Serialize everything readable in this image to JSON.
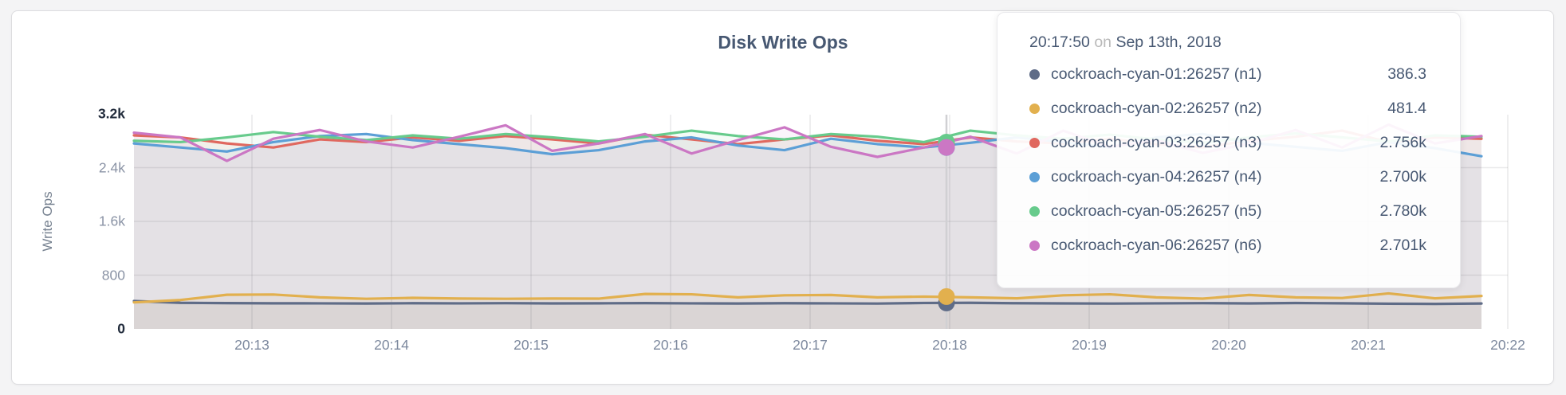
{
  "page": {
    "background": "#f4f4f5",
    "card_background": "#ffffff",
    "card_border": "#dcdcdf"
  },
  "chart_data": {
    "type": "line",
    "title": "Disk Write Ops",
    "xlabel": "",
    "ylabel": "Write Ops",
    "ylim": [
      0,
      3200
    ],
    "grid": true,
    "legend_position": "tooltip",
    "x_tick_labels": [
      "20:13",
      "20:14",
      "20:15",
      "20:16",
      "20:17",
      "20:18",
      "20:19",
      "20:20",
      "20:21",
      "20:22"
    ],
    "y_ticks": [
      {
        "label": "3.2k",
        "value": 3200,
        "strong": true
      },
      {
        "label": "2.4k",
        "value": 2400,
        "strong": false
      },
      {
        "label": "1.6k",
        "value": 1600,
        "strong": false
      },
      {
        "label": "800",
        "value": 800,
        "strong": false
      },
      {
        "label": "0",
        "value": 0,
        "strong": true
      }
    ],
    "x_start": "20:12:10",
    "x_end": "20:21:50",
    "x_step_seconds": 20,
    "hover_time": "20:17:50",
    "series": [
      {
        "name": "cockroach-cyan-01:26257 (n1)",
        "color": "#5f6c87",
        "hover_value": 386.3,
        "values": [
          415,
          388,
          384,
          381,
          380,
          378,
          382,
          380,
          383,
          379,
          381,
          384,
          380,
          378,
          382,
          380,
          377,
          386,
          388,
          382,
          379,
          377,
          380,
          383,
          379,
          385,
          381,
          375,
          372,
          378
        ]
      },
      {
        "name": "cockroach-cyan-02:26257 (n2)",
        "color": "#e2b04e",
        "hover_value": 481.4,
        "values": [
          395,
          430,
          508,
          512,
          470,
          448,
          462,
          452,
          448,
          452,
          450,
          520,
          515,
          470,
          500,
          505,
          470,
          481,
          470,
          455,
          500,
          515,
          470,
          450,
          505,
          470,
          460,
          528,
          455,
          490
        ]
      },
      {
        "name": "cockroach-cyan-03:26257 (n3)",
        "color": "#e0685f",
        "hover_value": 2756,
        "values": [
          2880,
          2850,
          2760,
          2700,
          2820,
          2780,
          2850,
          2800,
          2870,
          2820,
          2760,
          2890,
          2820,
          2750,
          2820,
          2880,
          2800,
          2750,
          2850,
          2790,
          2760,
          2830,
          2750,
          2700,
          2800,
          2860,
          2950,
          2780,
          2850,
          2830
        ]
      },
      {
        "name": "cockroach-cyan-04:26257 (n4)",
        "color": "#5c9fd6",
        "hover_value": 2700,
        "values": [
          2760,
          2700,
          2640,
          2780,
          2870,
          2900,
          2810,
          2750,
          2690,
          2600,
          2660,
          2790,
          2850,
          2730,
          2660,
          2830,
          2750,
          2700,
          2770,
          2850,
          2780,
          2700,
          2850,
          2900,
          2770,
          2710,
          2650,
          2780,
          2690,
          2570
        ]
      },
      {
        "name": "cockroach-cyan-05:26257 (n5)",
        "color": "#67cb8c",
        "hover_value": 2780,
        "values": [
          2800,
          2780,
          2850,
          2930,
          2860,
          2810,
          2880,
          2830,
          2900,
          2850,
          2790,
          2860,
          2950,
          2870,
          2820,
          2900,
          2860,
          2780,
          2950,
          2880,
          2830,
          2890,
          2820,
          2770,
          2850,
          2910,
          2850,
          2790,
          2880,
          2860
        ]
      },
      {
        "name": "cockroach-cyan-06:26257 (n6)",
        "color": "#cb77c4",
        "hover_value": 2701,
        "values": [
          2920,
          2850,
          2500,
          2830,
          2960,
          2790,
          2700,
          2860,
          3030,
          2650,
          2760,
          2900,
          2610,
          2810,
          3000,
          2710,
          2560,
          2700,
          2860,
          2610,
          2950,
          2710,
          2810,
          2620,
          2760,
          2960,
          2700,
          3040,
          2760,
          2870
        ]
      }
    ]
  },
  "tooltip": {
    "time": "20:17:50",
    "on_word": "on",
    "date": "Sep 13th, 2018",
    "rows": [
      {
        "label": "cockroach-cyan-01:26257 (n1)",
        "value": "386.3",
        "color": "#5f6c87"
      },
      {
        "label": "cockroach-cyan-02:26257 (n2)",
        "value": "481.4",
        "color": "#e2b04e"
      },
      {
        "label": "cockroach-cyan-03:26257 (n3)",
        "value": "2.756k",
        "color": "#e0685f"
      },
      {
        "label": "cockroach-cyan-04:26257 (n4)",
        "value": "2.700k",
        "color": "#5c9fd6"
      },
      {
        "label": "cockroach-cyan-05:26257 (n5)",
        "value": "2.780k",
        "color": "#67cb8c"
      },
      {
        "label": "cockroach-cyan-06:26257 (n6)",
        "value": "2.701k",
        "color": "#cb77c4"
      }
    ]
  }
}
